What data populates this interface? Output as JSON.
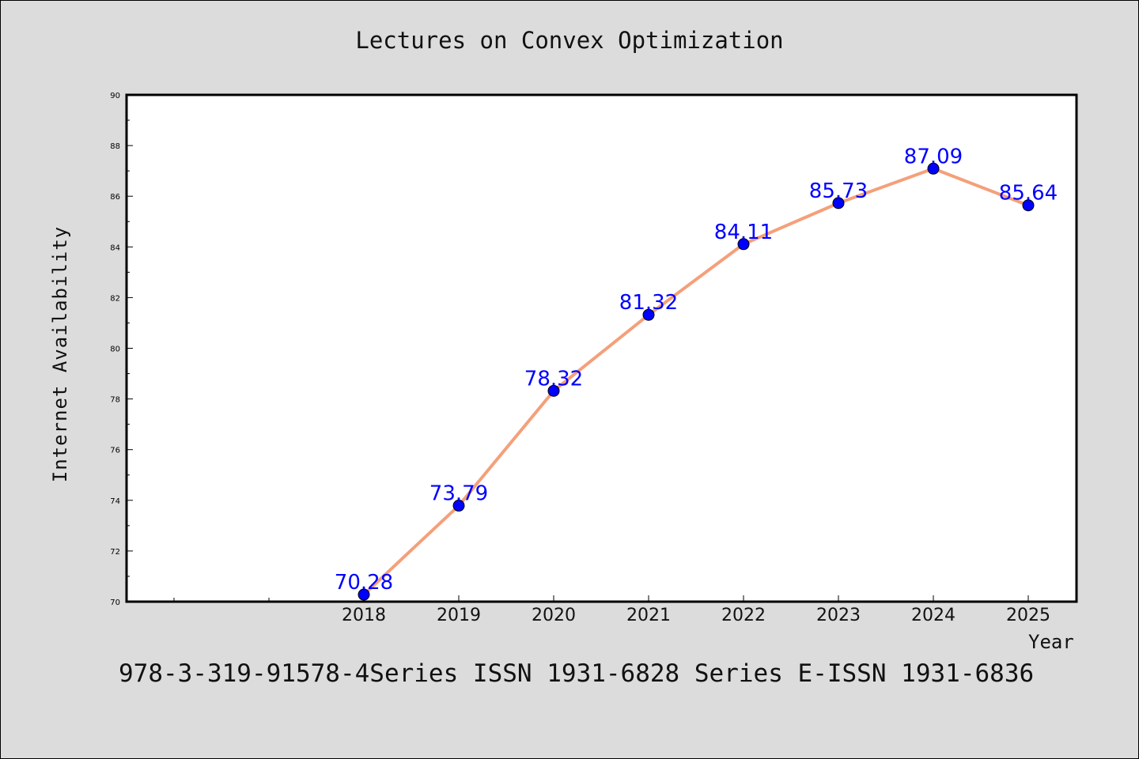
{
  "title": "Lectures on Convex Optimization",
  "footer": "978-3-319-91578-4Series ISSN 1931-6828 Series E-ISSN 1931-6836",
  "chart_data": {
    "type": "line",
    "title": "Lectures on Convex Optimization",
    "xlabel": "Year",
    "ylabel": "Internet Availability",
    "categories": [
      "2018",
      "2019",
      "2020",
      "2021",
      "2022",
      "2023",
      "2024",
      "2025"
    ],
    "values": [
      70.28,
      73.79,
      78.32,
      81.32,
      84.11,
      85.73,
      87.09,
      85.64
    ],
    "data_labels": [
      "70.28",
      "73.79",
      "78.32",
      "81.32",
      "84.11",
      "85.73",
      "87.09",
      "85.64"
    ],
    "ylim": [
      70,
      90
    ],
    "yticks": [
      "70",
      "72",
      "74",
      "76",
      "78",
      "80",
      "82",
      "84",
      "86",
      "88",
      "90"
    ],
    "grid": false,
    "line_color": "#f4a07a",
    "marker_color": "#0000ff",
    "label_color": "#0000ff"
  }
}
